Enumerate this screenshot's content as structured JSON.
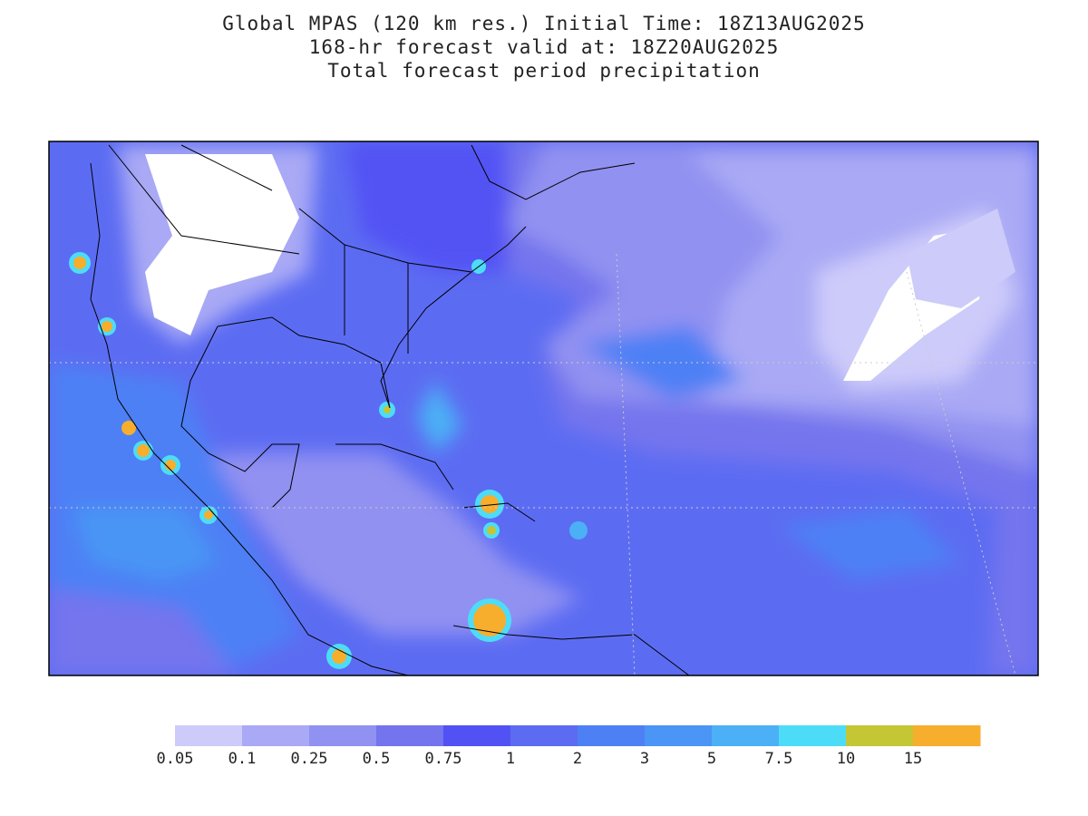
{
  "header": {
    "title_lines": [
      "Global MPAS (120 km res.) Initial Time: 18Z13AUG2025",
      "168-hr forecast valid at: 18Z20AUG2025",
      "Total forecast period precipitation"
    ]
  },
  "colorbar": {
    "levels": [
      {
        "label": "0.05",
        "color": "#cdcbfa"
      },
      {
        "label": "0.1",
        "color": "#a9a9f5"
      },
      {
        "label": "0.25",
        "color": "#9191f1"
      },
      {
        "label": "0.5",
        "color": "#7474ee"
      },
      {
        "label": "0.75",
        "color": "#5252f4"
      },
      {
        "label": "1",
        "color": "#5c6cf2"
      },
      {
        "label": "2",
        "color": "#4d80f5"
      },
      {
        "label": "3",
        "color": "#4a95f5"
      },
      {
        "label": "5",
        "color": "#4cb0f6"
      },
      {
        "label": "7.5",
        "color": "#4ddcf8"
      },
      {
        "label": "10",
        "color": "#c4c634"
      },
      {
        "label": "15",
        "color": "#f6ae2c"
      }
    ]
  }
}
